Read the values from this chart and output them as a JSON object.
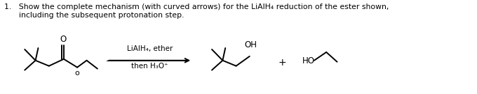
{
  "background_color": "#ffffff",
  "text_color": "#000000",
  "line_color": "#000000",
  "title_text": "1.   Show the complete mechanism (with curved arrows) for the LiAlH₄ reduction of the ester shown,",
  "subtitle_text": "      including the subsequent protonation step.",
  "reagent_line1": "LiAlH₄, ether",
  "reagent_line2": "then H₃O⁺",
  "plus_sign": "+",
  "fig_width": 6.8,
  "fig_height": 1.35,
  "dpi": 100
}
